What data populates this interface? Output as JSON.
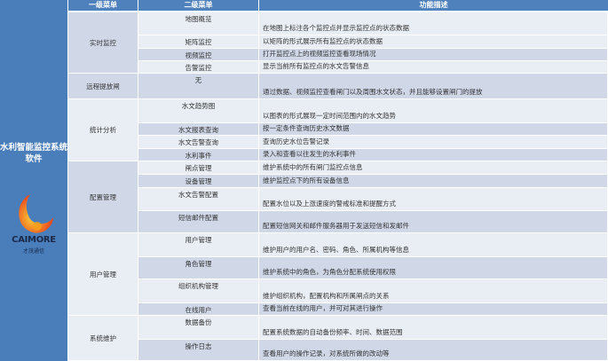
{
  "sidebar": {
    "title": "水利智能监控系统软件",
    "brand": "CAIMORE",
    "brand_cn": "才茂通信"
  },
  "headers": [
    "一级菜单",
    "二级菜单",
    "功能描述"
  ],
  "colors": {
    "header": "#4f81bd",
    "sidebar": "#4a7ebb",
    "row_dark": "#d0d8e8",
    "row_light": "#e9edf4"
  },
  "groups": [
    {
      "name": "实时监控",
      "items": [
        {
          "sub": "地图概览",
          "desc": "在地图上标注各个监控点并显示监控点的状态数据"
        },
        {
          "sub": "矩阵监控",
          "desc": "以矩阵的形式展示所有监控点的状态数据"
        },
        {
          "sub": "视频监控",
          "desc": "打开监控点上的视频监控查看现场情况"
        },
        {
          "sub": "告警监控",
          "desc": "显示当前所有监控点的水文告警信息"
        }
      ]
    },
    {
      "name": "远程提放闸",
      "items": [
        {
          "sub": "无",
          "desc": "通过数据、视频监控查看闸门以及周围水文状态，并且能够设置闸门的提放"
        }
      ]
    },
    {
      "name": "统计分析",
      "items": [
        {
          "sub": "水文趋势图",
          "desc": "以图表的形式展现一定时间范围内的水文趋势"
        },
        {
          "sub": "水文报表查询",
          "desc": "按一定条件查询历史水文数据"
        },
        {
          "sub": "水文告警查询",
          "desc": "查询历史水位告警记录"
        },
        {
          "sub": "水利事件",
          "desc": "录入和查看以往发生的水利事件"
        }
      ]
    },
    {
      "name": "配置管理",
      "items": [
        {
          "sub": "闸点管理",
          "desc": "维护系统中的所有闸门监控点信息"
        },
        {
          "sub": "设备管理",
          "desc": "维护监控点下的所有设备信息"
        },
        {
          "sub": "水文告警配置",
          "desc": "配置水位以及上涨速度的警戒标准和提醒方式"
        },
        {
          "sub": "短信邮件配置",
          "desc": "配置短信网关和邮件服务器用于发送短信和发邮件"
        }
      ]
    },
    {
      "name": "用户管理",
      "items": [
        {
          "sub": "用户管理",
          "desc": "维护用户的用户名、密码、角色、所属机构等信息"
        },
        {
          "sub": "角色管理",
          "desc": "维护系统中的角色，为角色分配系统使用权限"
        },
        {
          "sub": "组织机构管理",
          "desc": "维护组织机构，配置机构和所属闸点的关系"
        },
        {
          "sub": "在线用户",
          "desc": "查看当前在线的用户，并可对其进行操作"
        }
      ]
    },
    {
      "name": "系统维护",
      "items": [
        {
          "sub": "数据备份",
          "desc": "配置系统数据的自动备份频率、时间、数据范围"
        },
        {
          "sub": "操作日志",
          "desc": "查看用户的操作记录，对系统所做的改动等"
        }
      ]
    }
  ]
}
